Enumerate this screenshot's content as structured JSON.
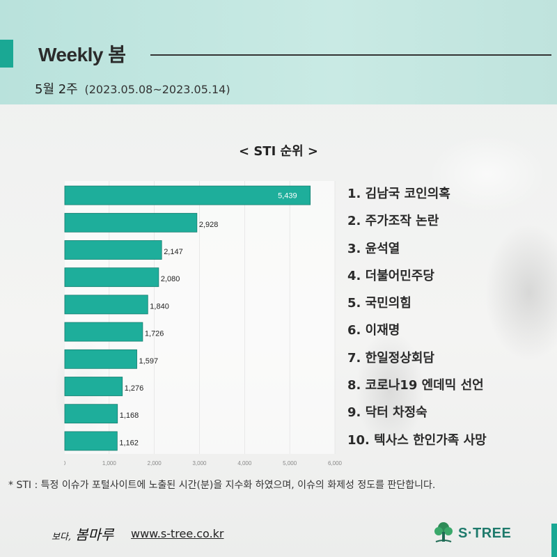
{
  "header": {
    "title": "Weekly 봄",
    "week_label": "5월 2주",
    "date_range": "(2023.05.08~2023.05.14)"
  },
  "chart_title": "< STI 순위 >",
  "chart_data": {
    "type": "bar",
    "orientation": "horizontal",
    "categories": [
      "김남국 코인의혹",
      "주가조작 논란",
      "윤석열",
      "더불어민주당",
      "국민의힘",
      "이재명",
      "한일정상회담",
      "코로나19 엔데믹 선언",
      "닥터 차정숙",
      "텍사스 한인가족 사망"
    ],
    "values": [
      5439,
      2928,
      2147,
      2080,
      1840,
      1726,
      1597,
      1276,
      1168,
      1162
    ],
    "value_labels": [
      "5,439",
      "2,928",
      "2,147",
      "2,080",
      "1,840",
      "1,726",
      "1,597",
      "1,276",
      "1,168",
      "1,162"
    ],
    "xlim": [
      0,
      6000
    ],
    "xticks": [
      0,
      1000,
      2000,
      3000,
      4000,
      5000,
      6000
    ],
    "xtick_labels": [
      "0",
      "1,000",
      "2,000",
      "3,000",
      "4,000",
      "5,000",
      "6,000"
    ],
    "grid": true,
    "bar_color": "#1eae9b"
  },
  "ranking": [
    "1. 김남국 코인의혹",
    "2. 주가조작 논란",
    "3. 윤석열",
    "4. 더불어민주당",
    "5. 국민의힘",
    "6. 이재명",
    "7. 한일정상회담",
    "8. 코로나19 엔데믹 선언",
    "9. 닥터 차정숙",
    "10. 텍사스 한인가족 사망"
  ],
  "footnote": "* STI : 특정 이슈가 포털사이트에 노출된 시간(분)을 지수화 하였으며, 이슈의 화제성 정도를 판단합니다.",
  "footer": {
    "brand_small": "보다,",
    "brand": "봄마루",
    "url": "www.s-tree.co.kr",
    "logo_text": "S·TREE",
    "logo_icon": "tree-icon"
  },
  "colors": {
    "accent": "#1aa894",
    "header_bg": "#c2e6e0"
  }
}
